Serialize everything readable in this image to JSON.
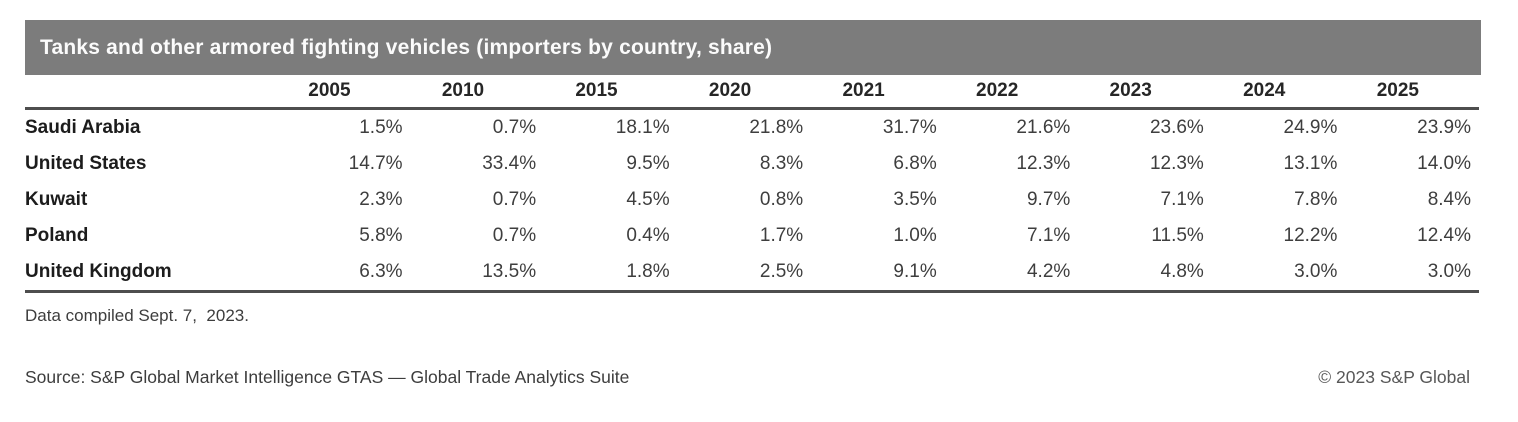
{
  "title": "Tanks and other armored fighting vehicles (importers by country, share)",
  "colors": {
    "title_bar_bg": "#7c7c7c",
    "title_text": "#fbfbfb",
    "rule_line": "#4e4e4e",
    "header_text": "#262626",
    "country_text": "#1c1c1c",
    "value_text": "#3e3e3e",
    "footer_text": "#3d3d3d"
  },
  "table": {
    "year_headers": [
      "2005",
      "2010",
      "2015",
      "2020",
      "2021",
      "2022",
      "2023",
      "2024",
      "2025"
    ],
    "rows": [
      {
        "country": "Saudi Arabia",
        "values": [
          "1.5%",
          "0.7%",
          "18.1%",
          "21.8%",
          "31.7%",
          "21.6%",
          "23.6%",
          "24.9%",
          "23.9%"
        ]
      },
      {
        "country": "United States",
        "values": [
          "14.7%",
          "33.4%",
          "9.5%",
          "8.3%",
          "6.8%",
          "12.3%",
          "12.3%",
          "13.1%",
          "14.0%"
        ]
      },
      {
        "country": "Kuwait",
        "values": [
          "2.3%",
          "0.7%",
          "4.5%",
          "0.8%",
          "3.5%",
          "9.7%",
          "7.1%",
          "7.8%",
          "8.4%"
        ]
      },
      {
        "country": "Poland",
        "values": [
          "5.8%",
          "0.7%",
          "0.4%",
          "1.7%",
          "1.0%",
          "7.1%",
          "11.5%",
          "12.2%",
          "12.4%"
        ]
      },
      {
        "country": "United Kingdom",
        "values": [
          "6.3%",
          "13.5%",
          "1.8%",
          "2.5%",
          "9.1%",
          "4.2%",
          "4.8%",
          "3.0%",
          "3.0%"
        ]
      }
    ]
  },
  "footer": {
    "note": "Data compiled Sept. 7,  2023.",
    "source": "Source: S&P Global Market Intelligence GTAS — Global Trade Analytics Suite",
    "copyright": "© 2023 S&P Global"
  },
  "chart_data": {
    "type": "table",
    "title": "Tanks and other armored fighting vehicles (importers by country, share)",
    "unit": "%",
    "columns": [
      2005,
      2010,
      2015,
      2020,
      2021,
      2022,
      2023,
      2024,
      2025
    ],
    "rows": [
      {
        "name": "Saudi Arabia",
        "values": [
          1.5,
          0.7,
          18.1,
          21.8,
          31.7,
          21.6,
          23.6,
          24.9,
          23.9
        ]
      },
      {
        "name": "United States",
        "values": [
          14.7,
          33.4,
          9.5,
          8.3,
          6.8,
          12.3,
          12.3,
          13.1,
          14.0
        ]
      },
      {
        "name": "Kuwait",
        "values": [
          2.3,
          0.7,
          4.5,
          0.8,
          3.5,
          9.7,
          7.1,
          7.8,
          8.4
        ]
      },
      {
        "name": "Poland",
        "values": [
          5.8,
          0.7,
          0.4,
          1.7,
          1.0,
          7.1,
          11.5,
          12.2,
          12.4
        ]
      },
      {
        "name": "United Kingdom",
        "values": [
          6.3,
          13.5,
          1.8,
          2.5,
          9.1,
          4.2,
          4.8,
          3.0,
          3.0
        ]
      }
    ],
    "notes": [
      "Data compiled Sept. 7, 2023.",
      "Source: S&P Global Market Intelligence GTAS — Global Trade Analytics Suite",
      "© 2023 S&P Global"
    ]
  }
}
